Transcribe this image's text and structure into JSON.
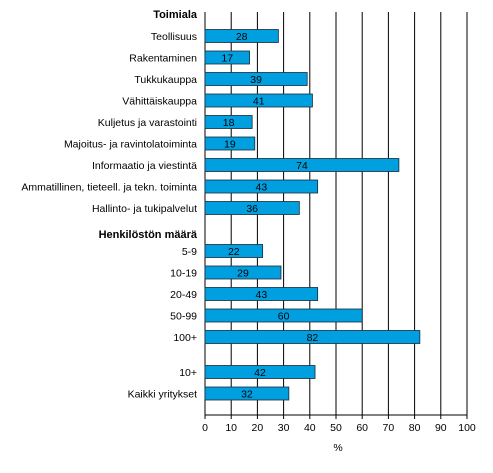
{
  "chart_data": {
    "type": "bar",
    "orientation": "horizontal",
    "xlabel": "%",
    "xlim": [
      0,
      100
    ],
    "xticks": [
      "0",
      "10",
      "20",
      "30",
      "40",
      "50",
      "60",
      "70",
      "80",
      "90",
      "100"
    ],
    "grid": true,
    "bar_color": "#00a0e0",
    "groups": [
      {
        "heading": "Toimiala",
        "categories": [
          "Teollisuus",
          "Rakentaminen",
          "Tukkukauppa",
          "Vähittäiskauppa",
          "Kuljetus ja varastointi",
          "Majoitus- ja ravintolatoiminta",
          "Informaatio ja viestintä",
          "Ammatillinen, tieteell. ja tekn. toiminta",
          "Hallinto- ja tukipalvelut"
        ],
        "values": [
          28,
          17,
          39,
          41,
          18,
          19,
          74,
          43,
          36
        ]
      },
      {
        "heading": "Henkilöstön määrä",
        "categories": [
          "5-9",
          "10-19",
          "20-49",
          "50-99",
          "100+"
        ],
        "values": [
          22,
          29,
          43,
          60,
          82
        ]
      },
      {
        "heading": "",
        "categories": [
          "10+",
          "Kaikki yritykset"
        ],
        "values": [
          42,
          32
        ]
      }
    ]
  }
}
